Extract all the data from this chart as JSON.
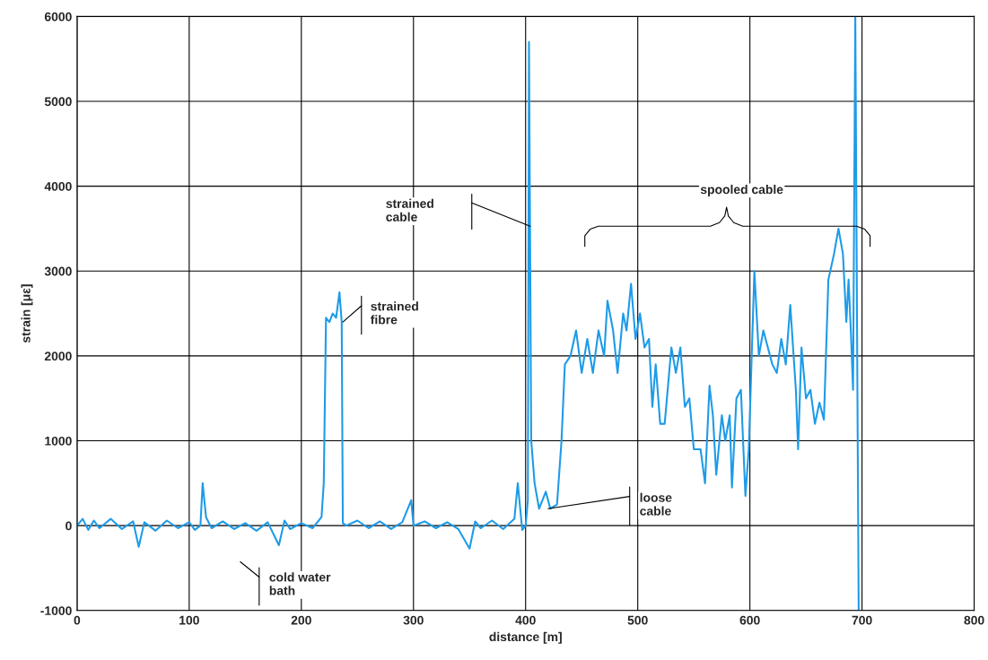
{
  "chart_data": {
    "type": "line",
    "xlabel": "distance [m]",
    "ylabel": "strain [με]",
    "xlim": [
      0,
      800
    ],
    "xticks": [
      0,
      100,
      200,
      300,
      400,
      500,
      600,
      700,
      800
    ],
    "ylim": [
      -1000,
      6000
    ],
    "yticks": [
      -1000,
      0,
      1000,
      2000,
      3000,
      4000,
      5000,
      6000
    ],
    "grid": true,
    "marker": "none",
    "line_style": "solid",
    "series": [
      {
        "color": "#1e9be8",
        "x": [
          0,
          5,
          10,
          15,
          20,
          30,
          40,
          50,
          55,
          60,
          70,
          80,
          90,
          100,
          105,
          110,
          112,
          115,
          120,
          130,
          140,
          150,
          160,
          170,
          180,
          185,
          190,
          200,
          210,
          218,
          220,
          222,
          225,
          228,
          231,
          234,
          236,
          237,
          240,
          250,
          260,
          270,
          280,
          290,
          298,
          300,
          310,
          320,
          330,
          340,
          350,
          355,
          360,
          370,
          380,
          390,
          393,
          397,
          400,
          402,
          403,
          405,
          408,
          412,
          418,
          422,
          428,
          432,
          435,
          440,
          445,
          450,
          455,
          460,
          465,
          470,
          473,
          478,
          482,
          487,
          490,
          494,
          498,
          502,
          506,
          510,
          513,
          516,
          520,
          524,
          530,
          534,
          538,
          542,
          546,
          550,
          556,
          560,
          564,
          567,
          570,
          575,
          578,
          582,
          584,
          588,
          592,
          596,
          599,
          604,
          608,
          612,
          616,
          620,
          624,
          628,
          632,
          636,
          641,
          643,
          646,
          650,
          654,
          658,
          662,
          666,
          670,
          675,
          679,
          683,
          686,
          688,
          690,
          692,
          694,
          697
        ],
        "values": [
          0,
          80,
          -50,
          60,
          -30,
          80,
          -40,
          50,
          -250,
          40,
          -60,
          60,
          -30,
          40,
          -50,
          0,
          500,
          100,
          -30,
          50,
          -40,
          30,
          -60,
          40,
          -230,
          60,
          -40,
          30,
          -30,
          100,
          500,
          2450,
          2400,
          2500,
          2450,
          2750,
          2400,
          30,
          0,
          60,
          -30,
          50,
          -40,
          40,
          300,
          0,
          50,
          -30,
          40,
          -40,
          -270,
          50,
          -30,
          60,
          -40,
          80,
          500,
          -50,
          0,
          300,
          5700,
          1000,
          500,
          200,
          400,
          200,
          250,
          1000,
          1900,
          2000,
          2300,
          1800,
          2200,
          1800,
          2300,
          2000,
          2650,
          2300,
          1800,
          2500,
          2300,
          2850,
          2200,
          2500,
          2100,
          2200,
          1400,
          1900,
          1200,
          1200,
          2100,
          1800,
          2100,
          1400,
          1500,
          900,
          900,
          500,
          1650,
          1300,
          600,
          1300,
          1000,
          1300,
          450,
          1500,
          1600,
          350,
          900,
          3000,
          2000,
          2300,
          2100,
          1900,
          1800,
          2200,
          1900,
          2600,
          1600,
          900,
          2100,
          1500,
          1600,
          1200,
          1450,
          1250,
          2900,
          3200,
          3500,
          3200,
          2400,
          2900,
          2300,
          1600,
          6000,
          -1000
        ]
      }
    ],
    "annotations": [
      "strained\ncable",
      {
        "text": "strained\nfibre",
        "x": 237,
        "y": 2400
      },
      {
        "text": "loose\ncable",
        "x": 420,
        "y": 200
      },
      "cold water\nbath",
      "spooled cable"
    ]
  }
}
